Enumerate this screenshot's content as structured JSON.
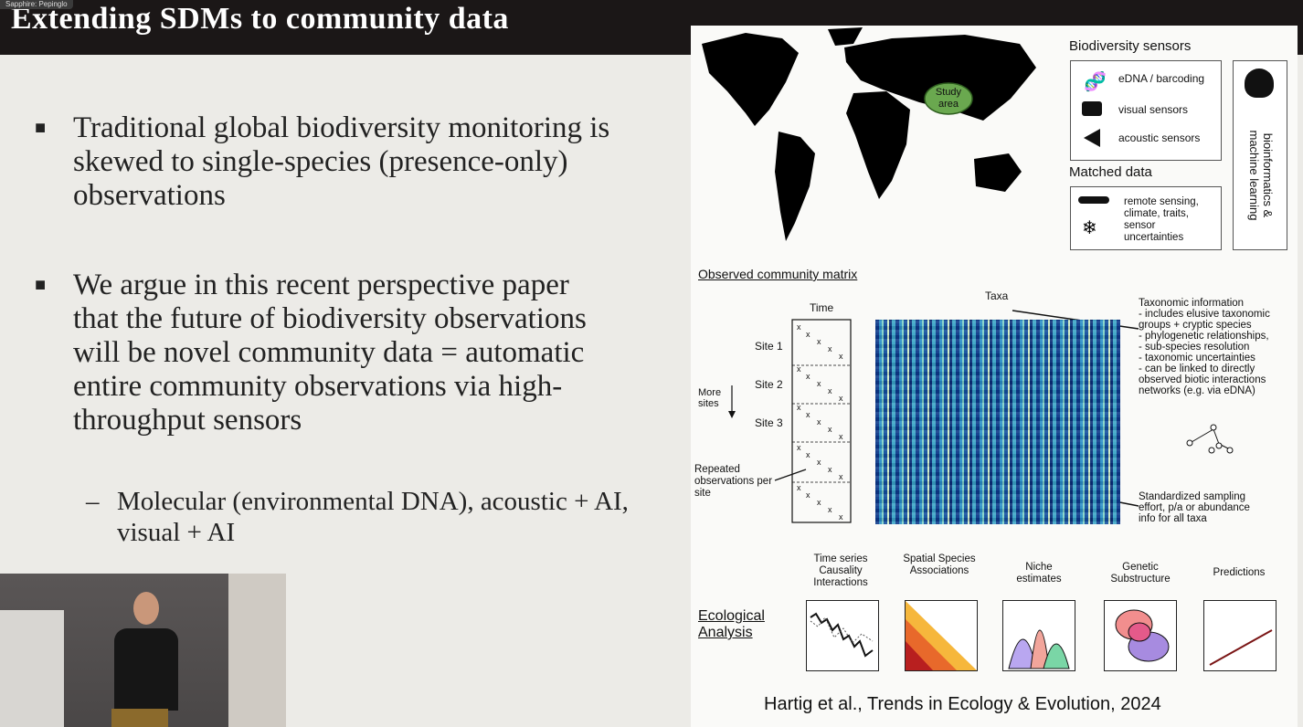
{
  "window": {
    "tag": "Sapphire: Pepinglo"
  },
  "slide": {
    "title": "Extending SDMs to community data",
    "bullets": [
      {
        "text": "Traditional global biodiversity monitoring is skewed to single-species (presence-only) observations"
      },
      {
        "text": "We argue in this recent perspective paper that the future of biodiversity observations will be novel community data = automatic entire community observations via high-throughput sensors"
      }
    ],
    "sub_bullet": "Molecular (environmental DNA), acoustic + AI, visual + AI"
  },
  "figure": {
    "study_area": "Study area",
    "sensors_title": "Biodiversity sensors",
    "sensors": [
      "eDNA / barcoding",
      "visual sensors",
      "acoustic sensors"
    ],
    "matched_title": "Matched data",
    "matched_text": "remote sensing, climate, traits, sensor uncertainties",
    "bioinfo": "bioinformatics & machine learning",
    "matrix_title": "Observed community matrix",
    "time_label": "Time",
    "taxa_label": "Taxa",
    "sites": [
      "Site 1",
      "Site 2",
      "Site 3"
    ],
    "more_sites": "More sites",
    "repeated": "Repeated observations per site",
    "taxonomic_info": [
      "Taxonomic information",
      "- includes elusive taxonomic",
      "groups + cryptic species",
      "- phylogenetic relationships,",
      "- sub-species resolution",
      "- taxonomic uncertainties",
      "- can be linked to directly",
      "observed biotic interactions",
      "networks (e.g. via eDNA)"
    ],
    "standardized": [
      "Standardized sampling",
      "effort, p/a or abundance",
      "info for all taxa"
    ],
    "ecological": "Ecological Analysis",
    "analyses": [
      "Time series Causality Interactions",
      "Spatial Species Associations",
      "Niche estimates",
      "Genetic Substructure",
      "Predictions"
    ],
    "citation": "Hartig et al., Trends in Ecology & Evolution, 2024"
  },
  "colors": {
    "title_bg": "#1b1717",
    "slide_bg": "#ecebe7",
    "study_area": "#6aa84f"
  }
}
